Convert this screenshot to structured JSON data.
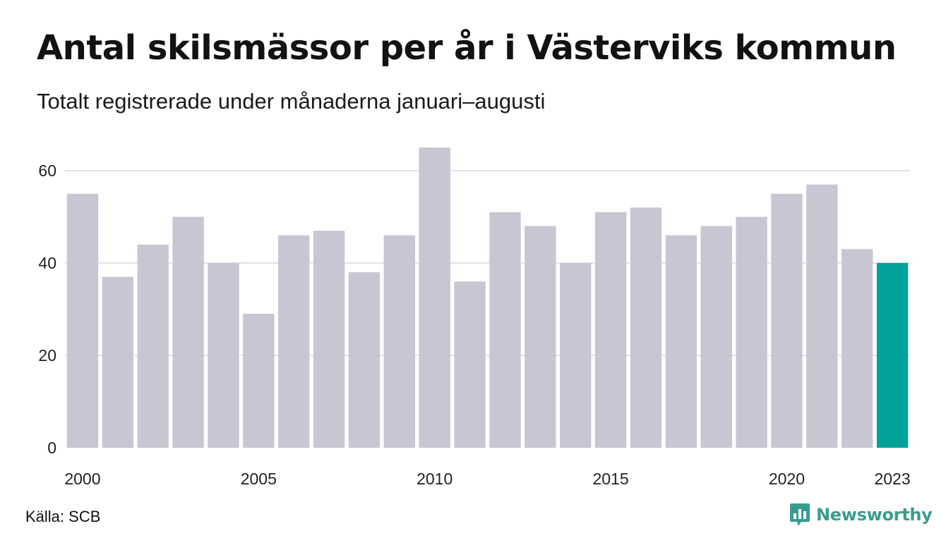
{
  "header": {
    "title": "Antal skilsmässor per år i Västerviks kommun",
    "subtitle": "Totalt registrerade under månaderna januari–augusti"
  },
  "footer": {
    "source": "Källa: SCB",
    "brand": "Newsworthy"
  },
  "colors": {
    "bar_default": "#c8c6d3",
    "bar_highlight": "#00a39a",
    "grid": "#e2e2e6",
    "brand": "#3a9c8e"
  },
  "chart_data": {
    "type": "bar",
    "title": "Antal skilsmässor per år i Västerviks kommun",
    "subtitle": "Totalt registrerade under månaderna januari–augusti",
    "xlabel": "",
    "ylabel": "",
    "categories": [
      2000,
      2001,
      2002,
      2003,
      2004,
      2005,
      2006,
      2007,
      2008,
      2009,
      2010,
      2011,
      2012,
      2013,
      2014,
      2015,
      2016,
      2017,
      2018,
      2019,
      2020,
      2021,
      2022,
      2023
    ],
    "values": [
      55,
      37,
      44,
      50,
      40,
      29,
      46,
      47,
      38,
      46,
      65,
      36,
      51,
      48,
      40,
      51,
      52,
      46,
      48,
      50,
      55,
      57,
      43,
      40
    ],
    "highlight_category": 2023,
    "ylim": [
      0,
      65
    ],
    "yticks": [
      0,
      20,
      40,
      60
    ],
    "xtick_labels": [
      "2000",
      "2005",
      "2010",
      "2015",
      "2020",
      "2023"
    ],
    "grid": true,
    "legend": false
  }
}
